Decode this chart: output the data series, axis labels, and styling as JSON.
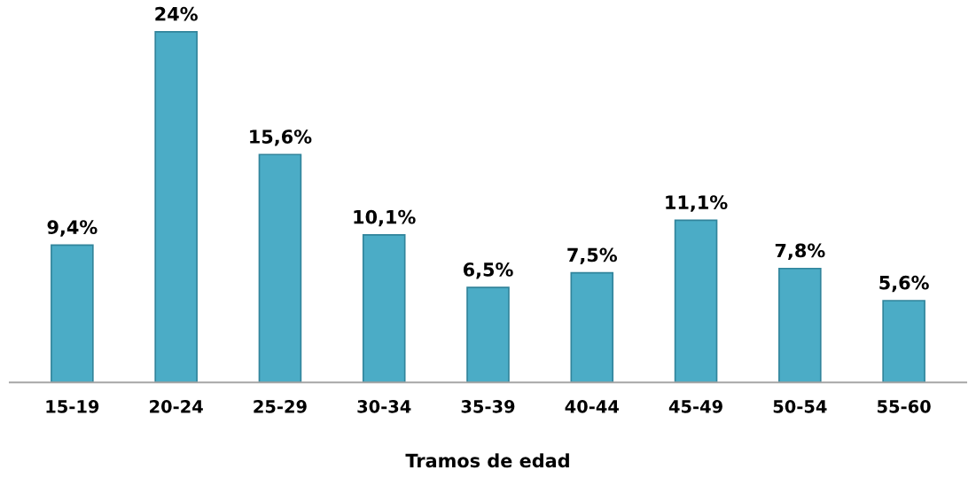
{
  "chart_data": {
    "type": "bar",
    "xlabel": "Tramos de edad",
    "categories": [
      "15-19",
      "20-24",
      "25-29",
      "30-34",
      "35-39",
      "40-44",
      "45-49",
      "50-54",
      "55-60"
    ],
    "values": [
      9.4,
      24,
      15.6,
      10.1,
      6.5,
      7.5,
      11.1,
      7.8,
      5.6
    ],
    "value_labels": [
      "9,4%",
      "24%",
      "15,6%",
      "10,1%",
      "6,5%",
      "7,5%",
      "11,1%",
      "7,8%",
      "5,6%"
    ],
    "color": "#4bacc6"
  }
}
